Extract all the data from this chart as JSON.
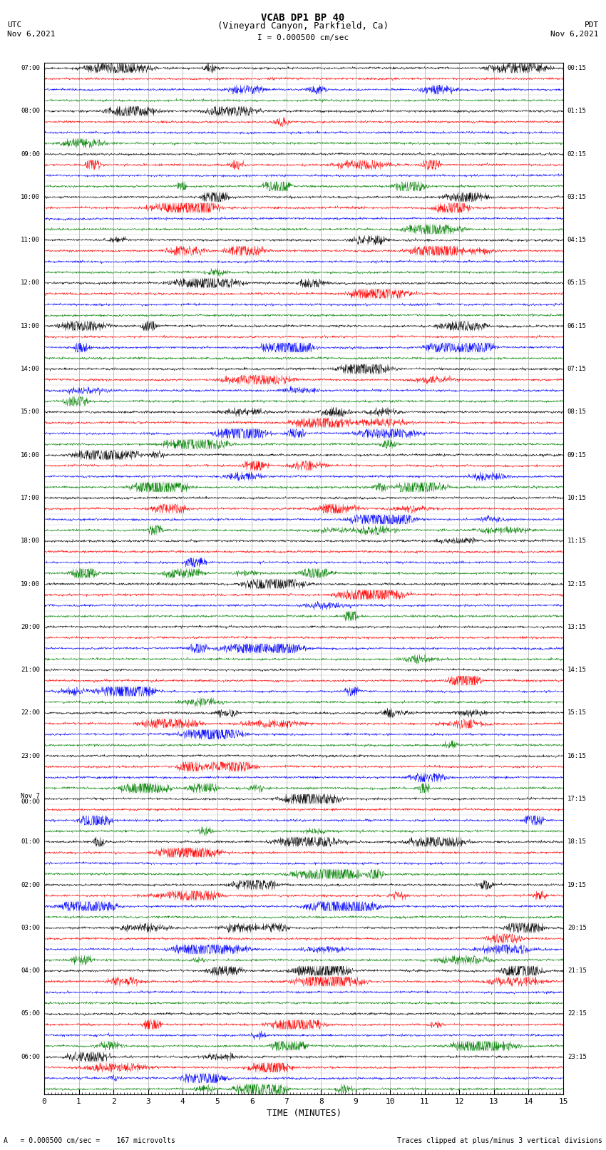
{
  "title_line1": "VCAB DP1 BP 40",
  "title_line2": "(Vineyard Canyon, Parkfield, Ca)",
  "scale_label": "I = 0.000500 cm/sec",
  "left_header_line1": "UTC",
  "left_header_line2": "Nov 6,2021",
  "right_header_line1": "PDT",
  "right_header_line2": "Nov 6,2021",
  "xlabel": "TIME (MINUTES)",
  "footer_left": "A   = 0.000500 cm/sec =    167 microvolts",
  "footer_right": "Traces clipped at plus/minus 3 vertical divisions",
  "xmin": 0,
  "xmax": 15,
  "xticks": [
    0,
    1,
    2,
    3,
    4,
    5,
    6,
    7,
    8,
    9,
    10,
    11,
    12,
    13,
    14,
    15
  ],
  "num_rows": 96,
  "trace_colors": [
    "black",
    "red",
    "blue",
    "green"
  ],
  "background_color": "white",
  "grid_color": "#888888",
  "noise_base": 0.12,
  "seed": 42,
  "utc_labels": [
    "07:00",
    "",
    "",
    "",
    "08:00",
    "",
    "",
    "",
    "09:00",
    "",
    "",
    "",
    "10:00",
    "",
    "",
    "",
    "11:00",
    "",
    "",
    "",
    "12:00",
    "",
    "",
    "",
    "13:00",
    "",
    "",
    "",
    "14:00",
    "",
    "",
    "",
    "15:00",
    "",
    "",
    "",
    "16:00",
    "",
    "",
    "",
    "17:00",
    "",
    "",
    "",
    "18:00",
    "",
    "",
    "",
    "19:00",
    "",
    "",
    "",
    "20:00",
    "",
    "",
    "",
    "21:00",
    "",
    "",
    "",
    "22:00",
    "",
    "",
    "",
    "23:00",
    "",
    "",
    "",
    "Nov 7\n00:00",
    "",
    "",
    "",
    "01:00",
    "",
    "",
    "",
    "02:00",
    "",
    "",
    "",
    "03:00",
    "",
    "",
    "",
    "04:00",
    "",
    "",
    "",
    "05:00",
    "",
    "",
    "",
    "06:00",
    "",
    "",
    ""
  ],
  "pdt_labels": [
    "00:15",
    "",
    "",
    "",
    "01:15",
    "",
    "",
    "",
    "02:15",
    "",
    "",
    "",
    "03:15",
    "",
    "",
    "",
    "04:15",
    "",
    "",
    "",
    "05:15",
    "",
    "",
    "",
    "06:15",
    "",
    "",
    "",
    "07:15",
    "",
    "",
    "",
    "08:15",
    "",
    "",
    "",
    "09:15",
    "",
    "",
    "",
    "10:15",
    "",
    "",
    "",
    "11:15",
    "",
    "",
    "",
    "12:15",
    "",
    "",
    "",
    "13:15",
    "",
    "",
    "",
    "14:15",
    "",
    "",
    "",
    "15:15",
    "",
    "",
    "",
    "16:15",
    "",
    "",
    "",
    "17:15",
    "",
    "",
    "",
    "18:15",
    "",
    "",
    "",
    "19:15",
    "",
    "",
    "",
    "20:15",
    "",
    "",
    "",
    "21:15",
    "",
    "",
    "",
    "22:15",
    "",
    "",
    "",
    "23:15",
    "",
    "",
    ""
  ]
}
